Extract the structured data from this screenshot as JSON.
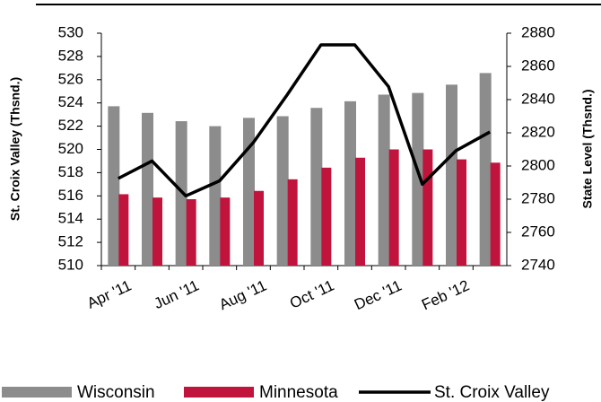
{
  "chart_data": {
    "type": "bar",
    "y_label": "St. Croix Valley (Thsnd.)",
    "y2_label": "State Level (Thsnd.)",
    "categories": [
      "Apr '11",
      null,
      "Jun '11",
      null,
      "Aug '11",
      null,
      "Oct '11",
      null,
      "Dec '11",
      null,
      "Feb '12",
      null
    ],
    "series": [
      {
        "name": "Wisconsin",
        "color": "#8c8c8c",
        "axis": "y2",
        "values": [
          2836,
          2832,
          2827,
          2824,
          2829,
          2830,
          2835,
          2839,
          2843,
          2844,
          2849,
          2856
        ]
      },
      {
        "name": "Minnesota",
        "color": "#c0143c",
        "axis": "y2",
        "values": [
          2783,
          2781,
          2780,
          2781,
          2785,
          2792,
          2799,
          2805,
          2810,
          2810,
          2804,
          2802
        ]
      },
      {
        "name": "St. Croix Valley",
        "color": "#000000",
        "type": "line",
        "axis": "y",
        "values": [
          517.5,
          519.0,
          516.0,
          517.3,
          520.6,
          524.7,
          529.0,
          529.0,
          525.4,
          517.0,
          519.9,
          521.5
        ]
      }
    ],
    "ylim": [
      510,
      530
    ],
    "yticks": [
      510,
      512,
      514,
      516,
      518,
      520,
      522,
      524,
      526,
      528,
      530
    ],
    "y2lim": [
      2740,
      2880
    ],
    "y2ticks": [
      2740,
      2760,
      2780,
      2800,
      2820,
      2840,
      2860,
      2880
    ],
    "legend": "bottom"
  }
}
